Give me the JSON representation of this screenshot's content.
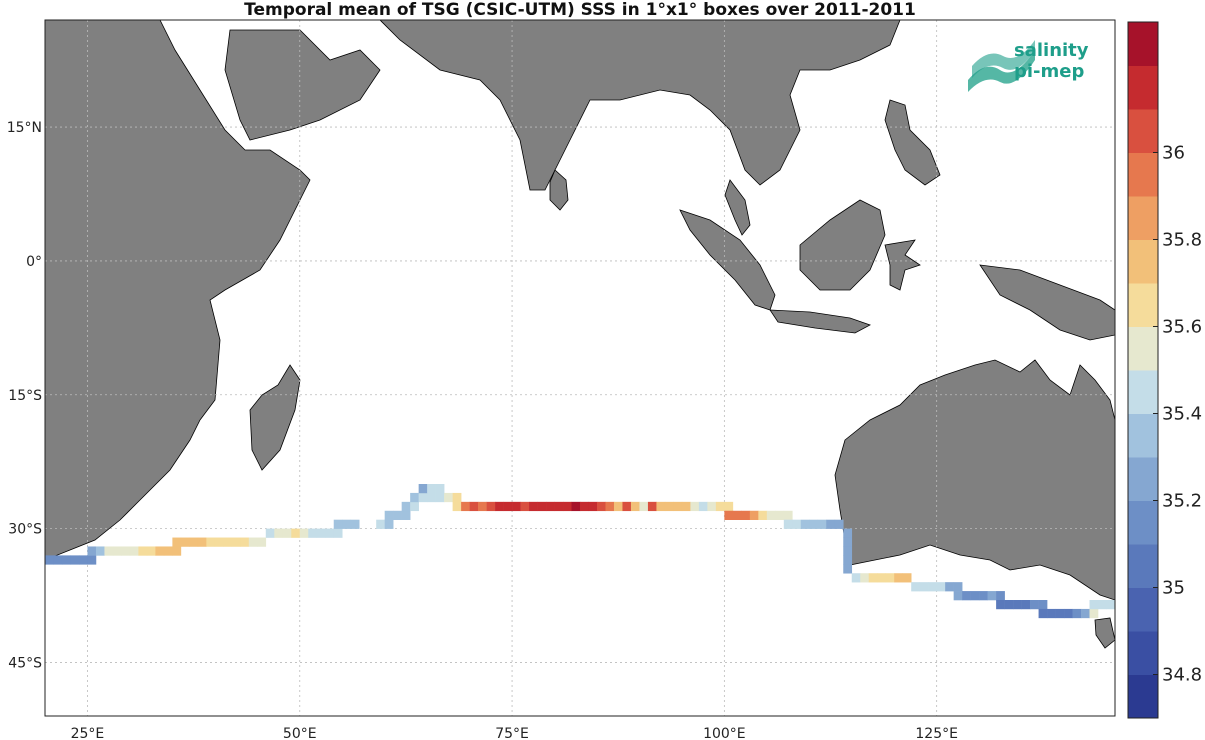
{
  "title": "Temporal mean of TSG (CSIC-UTM) SSS in 1°x1° boxes over 2011-2011",
  "logo": {
    "line1": "salinity",
    "line2": "pi-mep"
  },
  "map": {
    "lon_range": [
      20,
      146
    ],
    "lat_range": [
      -51,
      27
    ],
    "lon_ticks": [
      {
        "value": 25,
        "label": "25°E"
      },
      {
        "value": 50,
        "label": "50°E"
      },
      {
        "value": 75,
        "label": "75°E"
      },
      {
        "value": 100,
        "label": "100°E"
      },
      {
        "value": 125,
        "label": "125°E"
      }
    ],
    "lat_ticks": [
      {
        "value": 15,
        "label": "15°N"
      },
      {
        "value": 0,
        "label": "0°"
      },
      {
        "value": -15,
        "label": "15°S"
      },
      {
        "value": -30,
        "label": "30°S"
      },
      {
        "value": -45,
        "label": "45°S"
      }
    ],
    "land_color": "#808080",
    "grid": true
  },
  "colorbar": {
    "min": 34.7,
    "max": 36.3,
    "ticks": [
      "34.8",
      "35",
      "35.2",
      "35.4",
      "35.6",
      "35.8",
      "36"
    ],
    "colors": [
      "#2b3a91",
      "#3a4fa3",
      "#4a63b0",
      "#5a79bb",
      "#6d8fc6",
      "#85a7d1",
      "#a1c2de",
      "#c4dde8",
      "#e6e8cf",
      "#f5dc9b",
      "#f2c079",
      "#ee9f63",
      "#e6784e",
      "#d9503f",
      "#c52b2f",
      "#a6122a"
    ]
  },
  "chart_data": {
    "type": "heatmap",
    "variable": "SSS",
    "cells": [
      {
        "lon": 20,
        "lat": -34,
        "v": 35.1
      },
      {
        "lon": 21,
        "lat": -34,
        "v": 35.1
      },
      {
        "lon": 22,
        "lat": -34,
        "v": 35.1
      },
      {
        "lon": 23,
        "lat": -34,
        "v": 35.1
      },
      {
        "lon": 24,
        "lat": -34,
        "v": 35.12
      },
      {
        "lon": 25,
        "lat": -34,
        "v": 35.15
      },
      {
        "lon": 25,
        "lat": -33,
        "v": 35.25
      },
      {
        "lon": 26,
        "lat": -33,
        "v": 35.4
      },
      {
        "lon": 27,
        "lat": -33,
        "v": 35.55
      },
      {
        "lon": 28,
        "lat": -33,
        "v": 35.55
      },
      {
        "lon": 29,
        "lat": -33,
        "v": 35.55
      },
      {
        "lon": 30,
        "lat": -33,
        "v": 35.58
      },
      {
        "lon": 31,
        "lat": -33,
        "v": 35.6
      },
      {
        "lon": 32,
        "lat": -33,
        "v": 35.65
      },
      {
        "lon": 33,
        "lat": -33,
        "v": 35.72
      },
      {
        "lon": 34,
        "lat": -33,
        "v": 35.75
      },
      {
        "lon": 35,
        "lat": -33,
        "v": 35.75
      },
      {
        "lon": 35,
        "lat": -32,
        "v": 35.72
      },
      {
        "lon": 36,
        "lat": -32,
        "v": 35.72
      },
      {
        "lon": 37,
        "lat": -32,
        "v": 35.72
      },
      {
        "lon": 38,
        "lat": -32,
        "v": 35.72
      },
      {
        "lon": 39,
        "lat": -32,
        "v": 35.68
      },
      {
        "lon": 40,
        "lat": -32,
        "v": 35.65
      },
      {
        "lon": 41,
        "lat": -32,
        "v": 35.62
      },
      {
        "lon": 42,
        "lat": -32,
        "v": 35.62
      },
      {
        "lon": 43,
        "lat": -32,
        "v": 35.68
      },
      {
        "lon": 44,
        "lat": -32,
        "v": 35.5
      },
      {
        "lon": 45,
        "lat": -32,
        "v": 35.52
      },
      {
        "lon": 46,
        "lat": -31,
        "v": 35.48
      },
      {
        "lon": 47,
        "lat": -31,
        "v": 35.5
      },
      {
        "lon": 48,
        "lat": -31,
        "v": 35.52
      },
      {
        "lon": 49,
        "lat": -31,
        "v": 35.62
      },
      {
        "lon": 50,
        "lat": -31,
        "v": 35.5
      },
      {
        "lon": 51,
        "lat": -31,
        "v": 35.45
      },
      {
        "lon": 52,
        "lat": -31,
        "v": 35.48
      },
      {
        "lon": 53,
        "lat": -31,
        "v": 35.45
      },
      {
        "lon": 54,
        "lat": -31,
        "v": 35.42
      },
      {
        "lon": 54,
        "lat": -30,
        "v": 35.35
      },
      {
        "lon": 55,
        "lat": -30,
        "v": 35.35
      },
      {
        "lon": 56,
        "lat": -30,
        "v": 35.35
      },
      {
        "lon": 59,
        "lat": -30,
        "v": 35.42
      },
      {
        "lon": 60,
        "lat": -30,
        "v": 35.4
      },
      {
        "lon": 60,
        "lat": -29,
        "v": 35.35
      },
      {
        "lon": 61,
        "lat": -29,
        "v": 35.35
      },
      {
        "lon": 62,
        "lat": -29,
        "v": 35.38
      },
      {
        "lon": 62,
        "lat": -28,
        "v": 35.35
      },
      {
        "lon": 63,
        "lat": -28,
        "v": 35.42
      },
      {
        "lon": 63,
        "lat": -27,
        "v": 35.35
      },
      {
        "lon": 64,
        "lat": -27,
        "v": 35.42
      },
      {
        "lon": 65,
        "lat": -27,
        "v": 35.45
      },
      {
        "lon": 66,
        "lat": -27,
        "v": 35.48
      },
      {
        "lon": 67,
        "lat": -27,
        "v": 35.55
      },
      {
        "lon": 68,
        "lat": -27,
        "v": 35.68
      },
      {
        "lon": 64,
        "lat": -26,
        "v": 35.3
      },
      {
        "lon": 65,
        "lat": -26,
        "v": 35.42
      },
      {
        "lon": 66,
        "lat": -26,
        "v": 35.45
      },
      {
        "lon": 68,
        "lat": -28,
        "v": 35.62
      },
      {
        "lon": 69,
        "lat": -28,
        "v": 35.95
      },
      {
        "lon": 70,
        "lat": -28,
        "v": 36.0
      },
      {
        "lon": 71,
        "lat": -28,
        "v": 35.95
      },
      {
        "lon": 72,
        "lat": -28,
        "v": 36.05
      },
      {
        "lon": 73,
        "lat": -28,
        "v": 36.1
      },
      {
        "lon": 74,
        "lat": -28,
        "v": 36.15
      },
      {
        "lon": 75,
        "lat": -28,
        "v": 36.15
      },
      {
        "lon": 76,
        "lat": -28,
        "v": 36.05
      },
      {
        "lon": 77,
        "lat": -28,
        "v": 36.1
      },
      {
        "lon": 78,
        "lat": -28,
        "v": 36.1
      },
      {
        "lon": 79,
        "lat": -28,
        "v": 36.12
      },
      {
        "lon": 80,
        "lat": -28,
        "v": 36.12
      },
      {
        "lon": 81,
        "lat": -28,
        "v": 36.15
      },
      {
        "lon": 82,
        "lat": -28,
        "v": 36.25
      },
      {
        "lon": 83,
        "lat": -28,
        "v": 36.12
      },
      {
        "lon": 84,
        "lat": -28,
        "v": 36.15
      },
      {
        "lon": 85,
        "lat": -28,
        "v": 36.05
      },
      {
        "lon": 86,
        "lat": -28,
        "v": 35.95
      },
      {
        "lon": 87,
        "lat": -28,
        "v": 35.8
      },
      {
        "lon": 88,
        "lat": -28,
        "v": 36.0
      },
      {
        "lon": 89,
        "lat": -28,
        "v": 35.75
      },
      {
        "lon": 90,
        "lat": -28,
        "v": 35.55
      },
      {
        "lon": 91,
        "lat": -28,
        "v": 36.05
      },
      {
        "lon": 92,
        "lat": -28,
        "v": 35.7
      },
      {
        "lon": 93,
        "lat": -28,
        "v": 35.78
      },
      {
        "lon": 94,
        "lat": -28,
        "v": 35.8
      },
      {
        "lon": 95,
        "lat": -28,
        "v": 35.8
      },
      {
        "lon": 96,
        "lat": -28,
        "v": 35.55
      },
      {
        "lon": 97,
        "lat": -28,
        "v": 35.42
      },
      {
        "lon": 98,
        "lat": -28,
        "v": 35.58
      },
      {
        "lon": 99,
        "lat": -28,
        "v": 35.6
      },
      {
        "lon": 100,
        "lat": -28,
        "v": 35.62
      },
      {
        "lon": 100,
        "lat": -29,
        "v": 35.9
      },
      {
        "lon": 101,
        "lat": -29,
        "v": 35.95
      },
      {
        "lon": 102,
        "lat": -29,
        "v": 35.9
      },
      {
        "lon": 103,
        "lat": -29,
        "v": 35.82
      },
      {
        "lon": 104,
        "lat": -29,
        "v": 35.65
      },
      {
        "lon": 105,
        "lat": -29,
        "v": 35.55
      },
      {
        "lon": 106,
        "lat": -29,
        "v": 35.52
      },
      {
        "lon": 107,
        "lat": -29,
        "v": 35.5
      },
      {
        "lon": 107,
        "lat": -30,
        "v": 35.48
      },
      {
        "lon": 108,
        "lat": -30,
        "v": 35.45
      },
      {
        "lon": 109,
        "lat": -30,
        "v": 35.4
      },
      {
        "lon": 110,
        "lat": -30,
        "v": 35.35
      },
      {
        "lon": 111,
        "lat": -30,
        "v": 35.32
      },
      {
        "lon": 112,
        "lat": -30,
        "v": 35.3
      },
      {
        "lon": 113,
        "lat": -30,
        "v": 35.25
      },
      {
        "lon": 114,
        "lat": -31,
        "v": 35.22
      },
      {
        "lon": 114,
        "lat": -32,
        "v": 35.2
      },
      {
        "lon": 114,
        "lat": -33,
        "v": 35.22
      },
      {
        "lon": 114,
        "lat": -34,
        "v": 35.25
      },
      {
        "lon": 114,
        "lat": -35,
        "v": 35.3
      },
      {
        "lon": 115,
        "lat": -36,
        "v": 35.42
      },
      {
        "lon": 116,
        "lat": -36,
        "v": 35.55
      },
      {
        "lon": 117,
        "lat": -36,
        "v": 35.62
      },
      {
        "lon": 118,
        "lat": -36,
        "v": 35.6
      },
      {
        "lon": 119,
        "lat": -36,
        "v": 35.62
      },
      {
        "lon": 120,
        "lat": -36,
        "v": 35.7
      },
      {
        "lon": 121,
        "lat": -36,
        "v": 35.72
      },
      {
        "lon": 122,
        "lat": -37,
        "v": 35.45
      },
      {
        "lon": 123,
        "lat": -37,
        "v": 35.48
      },
      {
        "lon": 124,
        "lat": -37,
        "v": 35.45
      },
      {
        "lon": 125,
        "lat": -37,
        "v": 35.42
      },
      {
        "lon": 126,
        "lat": -37,
        "v": 35.25
      },
      {
        "lon": 127,
        "lat": -37,
        "v": 35.2
      },
      {
        "lon": 127,
        "lat": -38,
        "v": 35.2
      },
      {
        "lon": 128,
        "lat": -38,
        "v": 35.15
      },
      {
        "lon": 129,
        "lat": -38,
        "v": 35.15
      },
      {
        "lon": 130,
        "lat": -38,
        "v": 35.18
      },
      {
        "lon": 131,
        "lat": -38,
        "v": 35.25
      },
      {
        "lon": 132,
        "lat": -38,
        "v": 35.15
      },
      {
        "lon": 132,
        "lat": -39,
        "v": 35.05
      },
      {
        "lon": 133,
        "lat": -39,
        "v": 35.05
      },
      {
        "lon": 134,
        "lat": -39,
        "v": 35.05
      },
      {
        "lon": 135,
        "lat": -39,
        "v": 35.08
      },
      {
        "lon": 136,
        "lat": -39,
        "v": 35.1
      },
      {
        "lon": 137,
        "lat": -39,
        "v": 35.12
      },
      {
        "lon": 137,
        "lat": -40,
        "v": 35.02
      },
      {
        "lon": 138,
        "lat": -40,
        "v": 35.02
      },
      {
        "lon": 139,
        "lat": -40,
        "v": 35.05
      },
      {
        "lon": 140,
        "lat": -40,
        "v": 35.05
      },
      {
        "lon": 141,
        "lat": -40,
        "v": 35.15
      },
      {
        "lon": 142,
        "lat": -40,
        "v": 35.3
      },
      {
        "lon": 143,
        "lat": -40,
        "v": 35.5
      },
      {
        "lon": 143,
        "lat": -39,
        "v": 35.45
      },
      {
        "lon": 144,
        "lat": -39,
        "v": 35.45
      },
      {
        "lon": 145,
        "lat": -39,
        "v": 35.48
      }
    ]
  }
}
